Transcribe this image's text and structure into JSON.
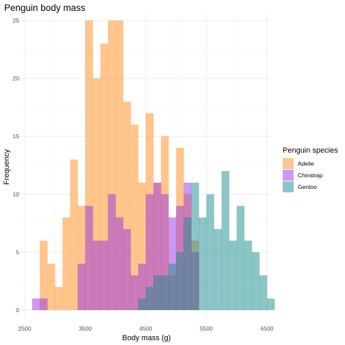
{
  "chart_data": {
    "type": "histogram",
    "title": "Penguin body mass",
    "xlabel": "Body mass (g)",
    "ylabel": "Frequency",
    "xlim": [
      2500,
      6500
    ],
    "ylim": [
      0,
      25
    ],
    "xticks": [
      2500,
      3500,
      4500,
      5500,
      6500
    ],
    "yticks": [
      0,
      5,
      10,
      15,
      20,
      25
    ],
    "bin_width": 125,
    "bin_start": 2625,
    "grid": true,
    "legend": {
      "title": "Penguin species",
      "position": "right"
    },
    "overlay_opacity": 0.5,
    "series": [
      {
        "name": "Adelie",
        "color": "#ff8c1a",
        "counts": [
          0,
          6,
          4,
          2,
          8,
          13,
          9,
          25,
          20,
          23,
          25,
          25,
          18,
          16,
          11,
          17,
          11,
          15,
          3,
          14,
          10,
          6,
          0,
          0,
          0,
          0,
          0,
          0,
          0,
          0,
          0,
          0
        ]
      },
      {
        "name": "Chinstrap",
        "color": "#9932e6",
        "counts": [
          1,
          1,
          0,
          0,
          0,
          0,
          4,
          9,
          6,
          6,
          10,
          8,
          7,
          3,
          4,
          10,
          11,
          10,
          8,
          9,
          11,
          5,
          0,
          0,
          0,
          0,
          0,
          0,
          0,
          0,
          0,
          0
        ]
      },
      {
        "name": "Gentoo",
        "color": "#1a8c8c",
        "counts": [
          0,
          0,
          0,
          0,
          0,
          0,
          0,
          0,
          0,
          0,
          0,
          0,
          0,
          0,
          1,
          2,
          3,
          3,
          4,
          5,
          8,
          11,
          8,
          10,
          7,
          12,
          6,
          9,
          6,
          5,
          3,
          1
        ]
      }
    ]
  }
}
